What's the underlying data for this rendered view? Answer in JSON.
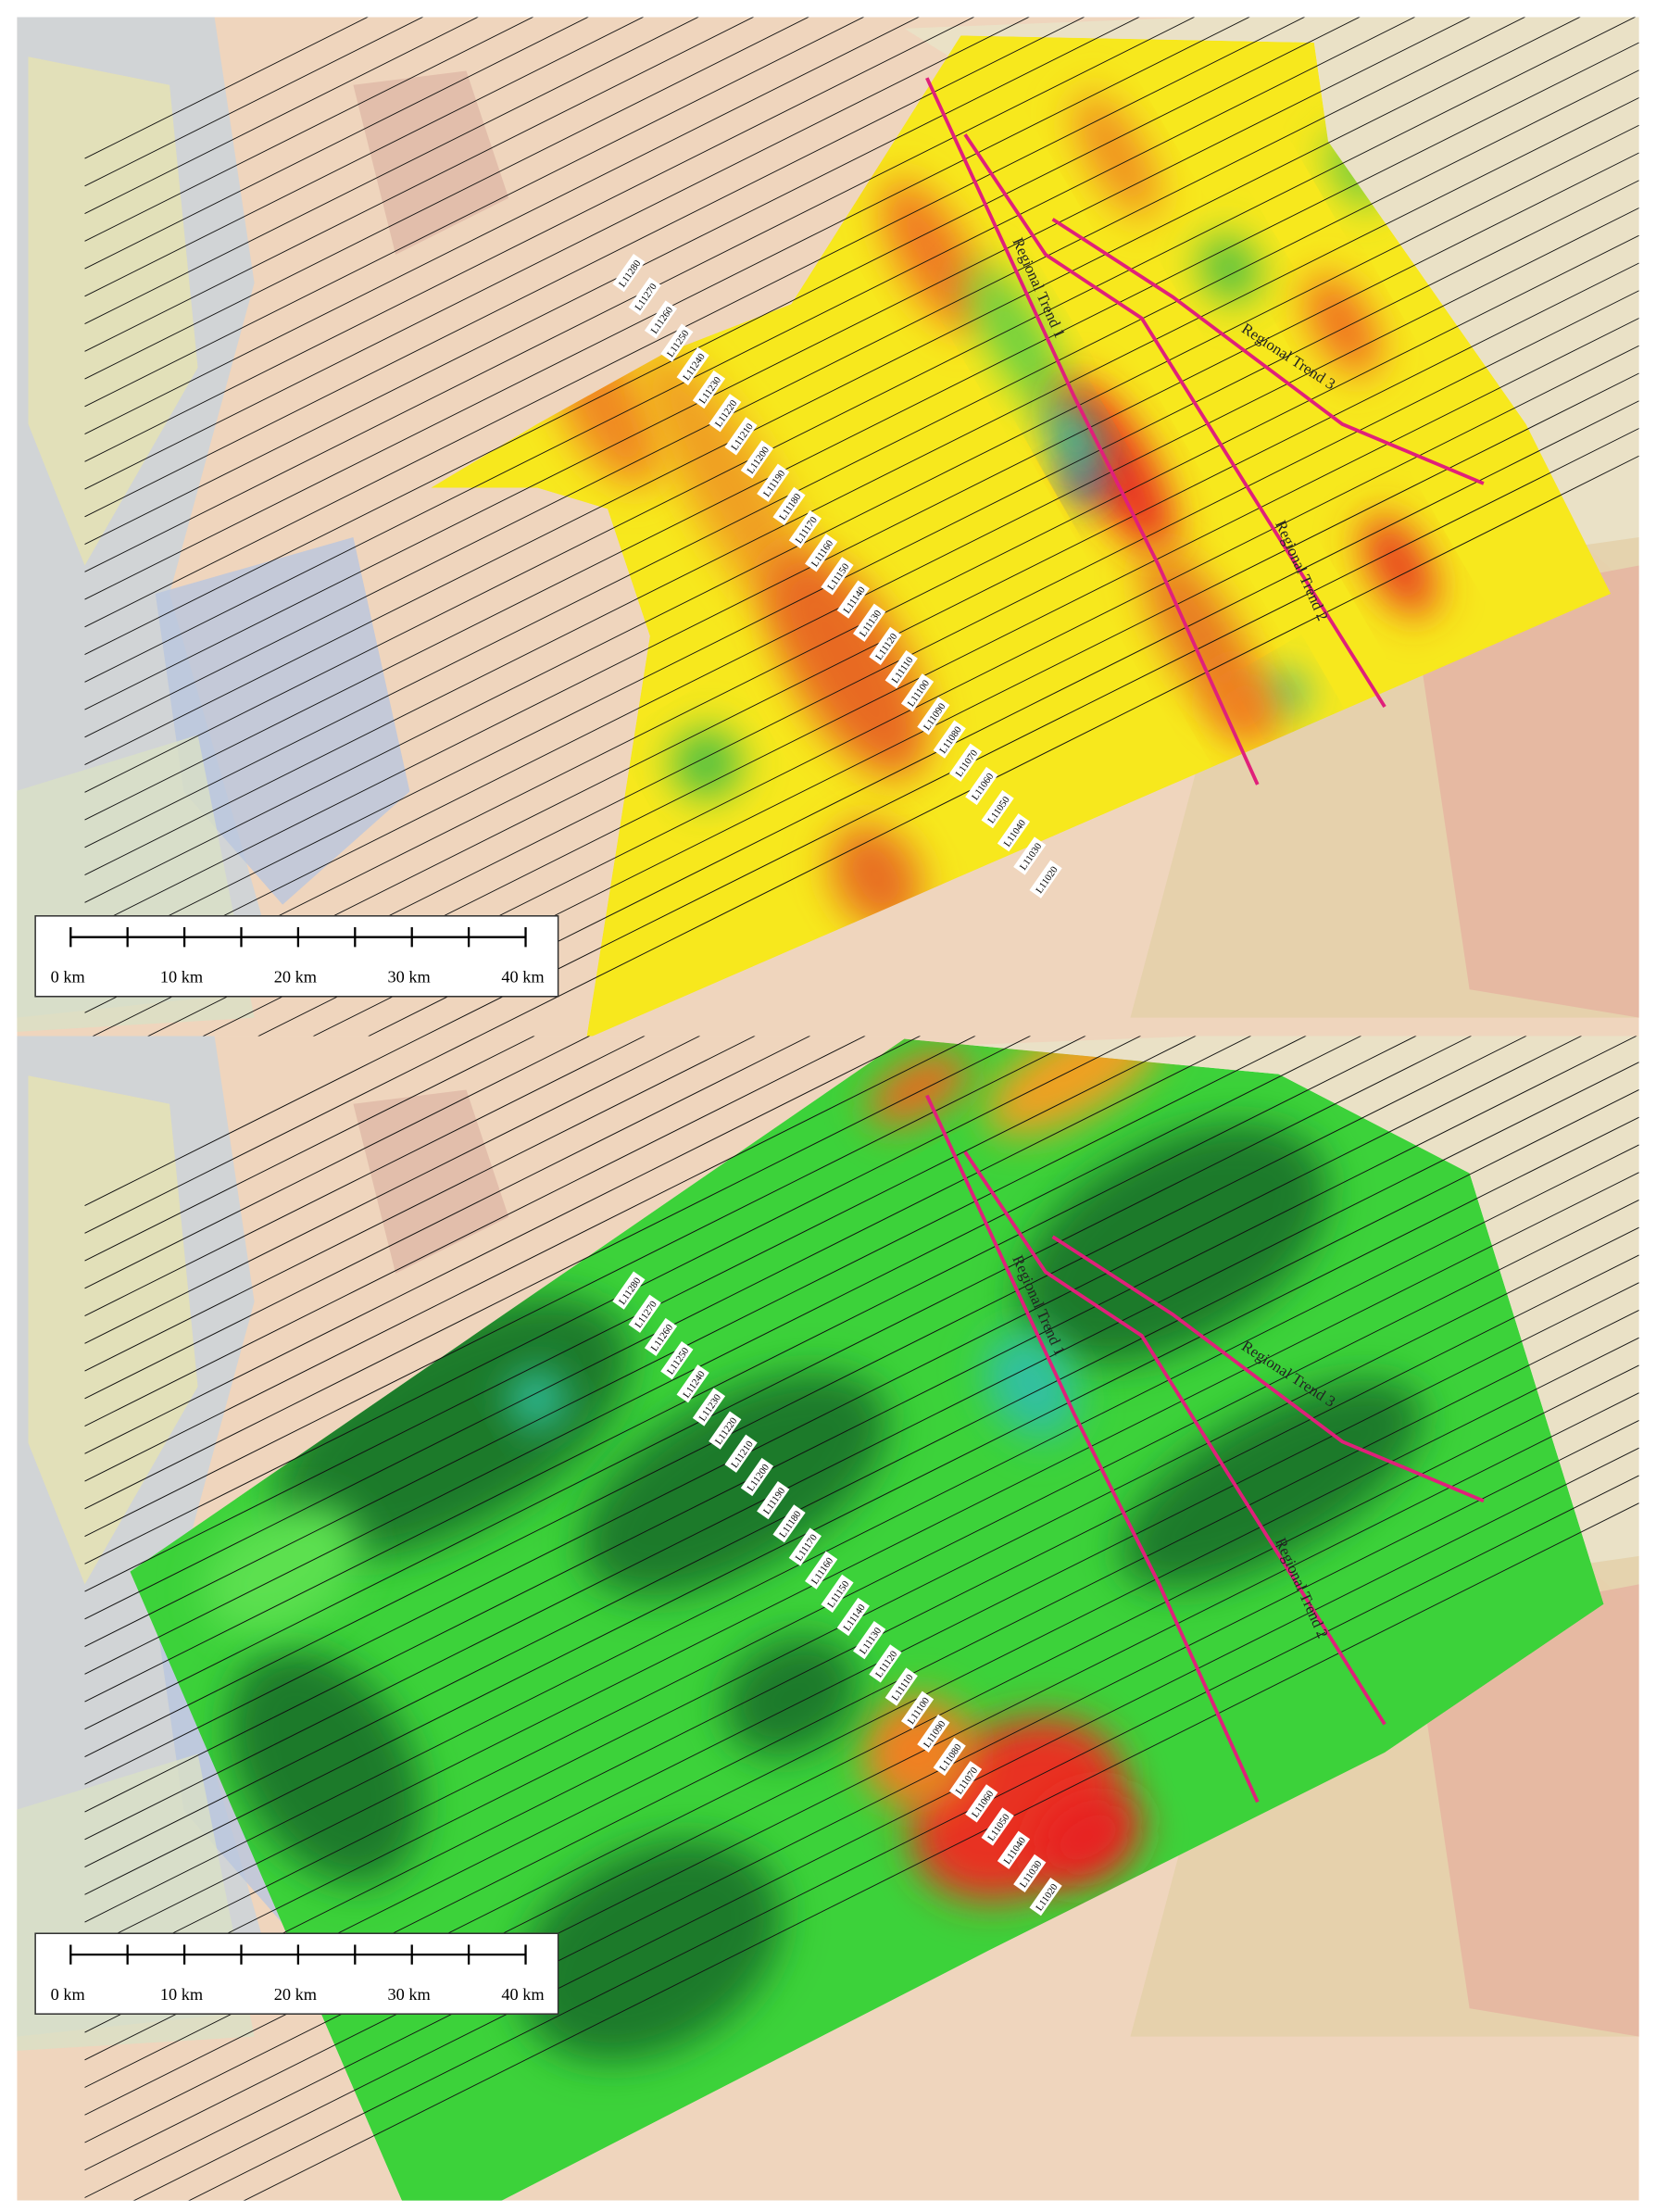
{
  "panels": [
    {
      "line_labels": [
        "L11280",
        "L11270",
        "L11260",
        "L11250",
        "L11240",
        "L11230",
        "L11220",
        "L11210",
        "L11200",
        "L11190",
        "L11180",
        "L11170",
        "L11160",
        "L11150",
        "L11140",
        "L11130",
        "L11120",
        "L11110",
        "L11100",
        "L11090",
        "L11080",
        "L11070",
        "L11060",
        "L11050",
        "L11040",
        "L11030",
        "L11020"
      ],
      "trend_labels": [
        "Regional Trend 1",
        "Regional Trend 2",
        "Regional Trend 3"
      ],
      "scale_labels": [
        "0 km",
        "10 km",
        "20 km",
        "30 km",
        "40 km"
      ]
    },
    {
      "line_labels": [
        "L11280",
        "L11270",
        "L11260",
        "L11250",
        "L11240",
        "L11230",
        "L11220",
        "L11210",
        "L11200",
        "L11190",
        "L11180",
        "L11170",
        "L11160",
        "L11150",
        "L11140",
        "L11130",
        "L11120",
        "L11110",
        "L11100",
        "L11090",
        "L11080",
        "L11070",
        "L11060",
        "L11050",
        "L11040",
        "L11030",
        "L11020"
      ],
      "trend_labels": [
        "Regional Trend 1",
        "Regional Trend 2",
        "Regional Trend 3"
      ],
      "scale_labels": [
        "0 km",
        "10 km",
        "20 km",
        "30 km",
        "40 km"
      ]
    }
  ]
}
